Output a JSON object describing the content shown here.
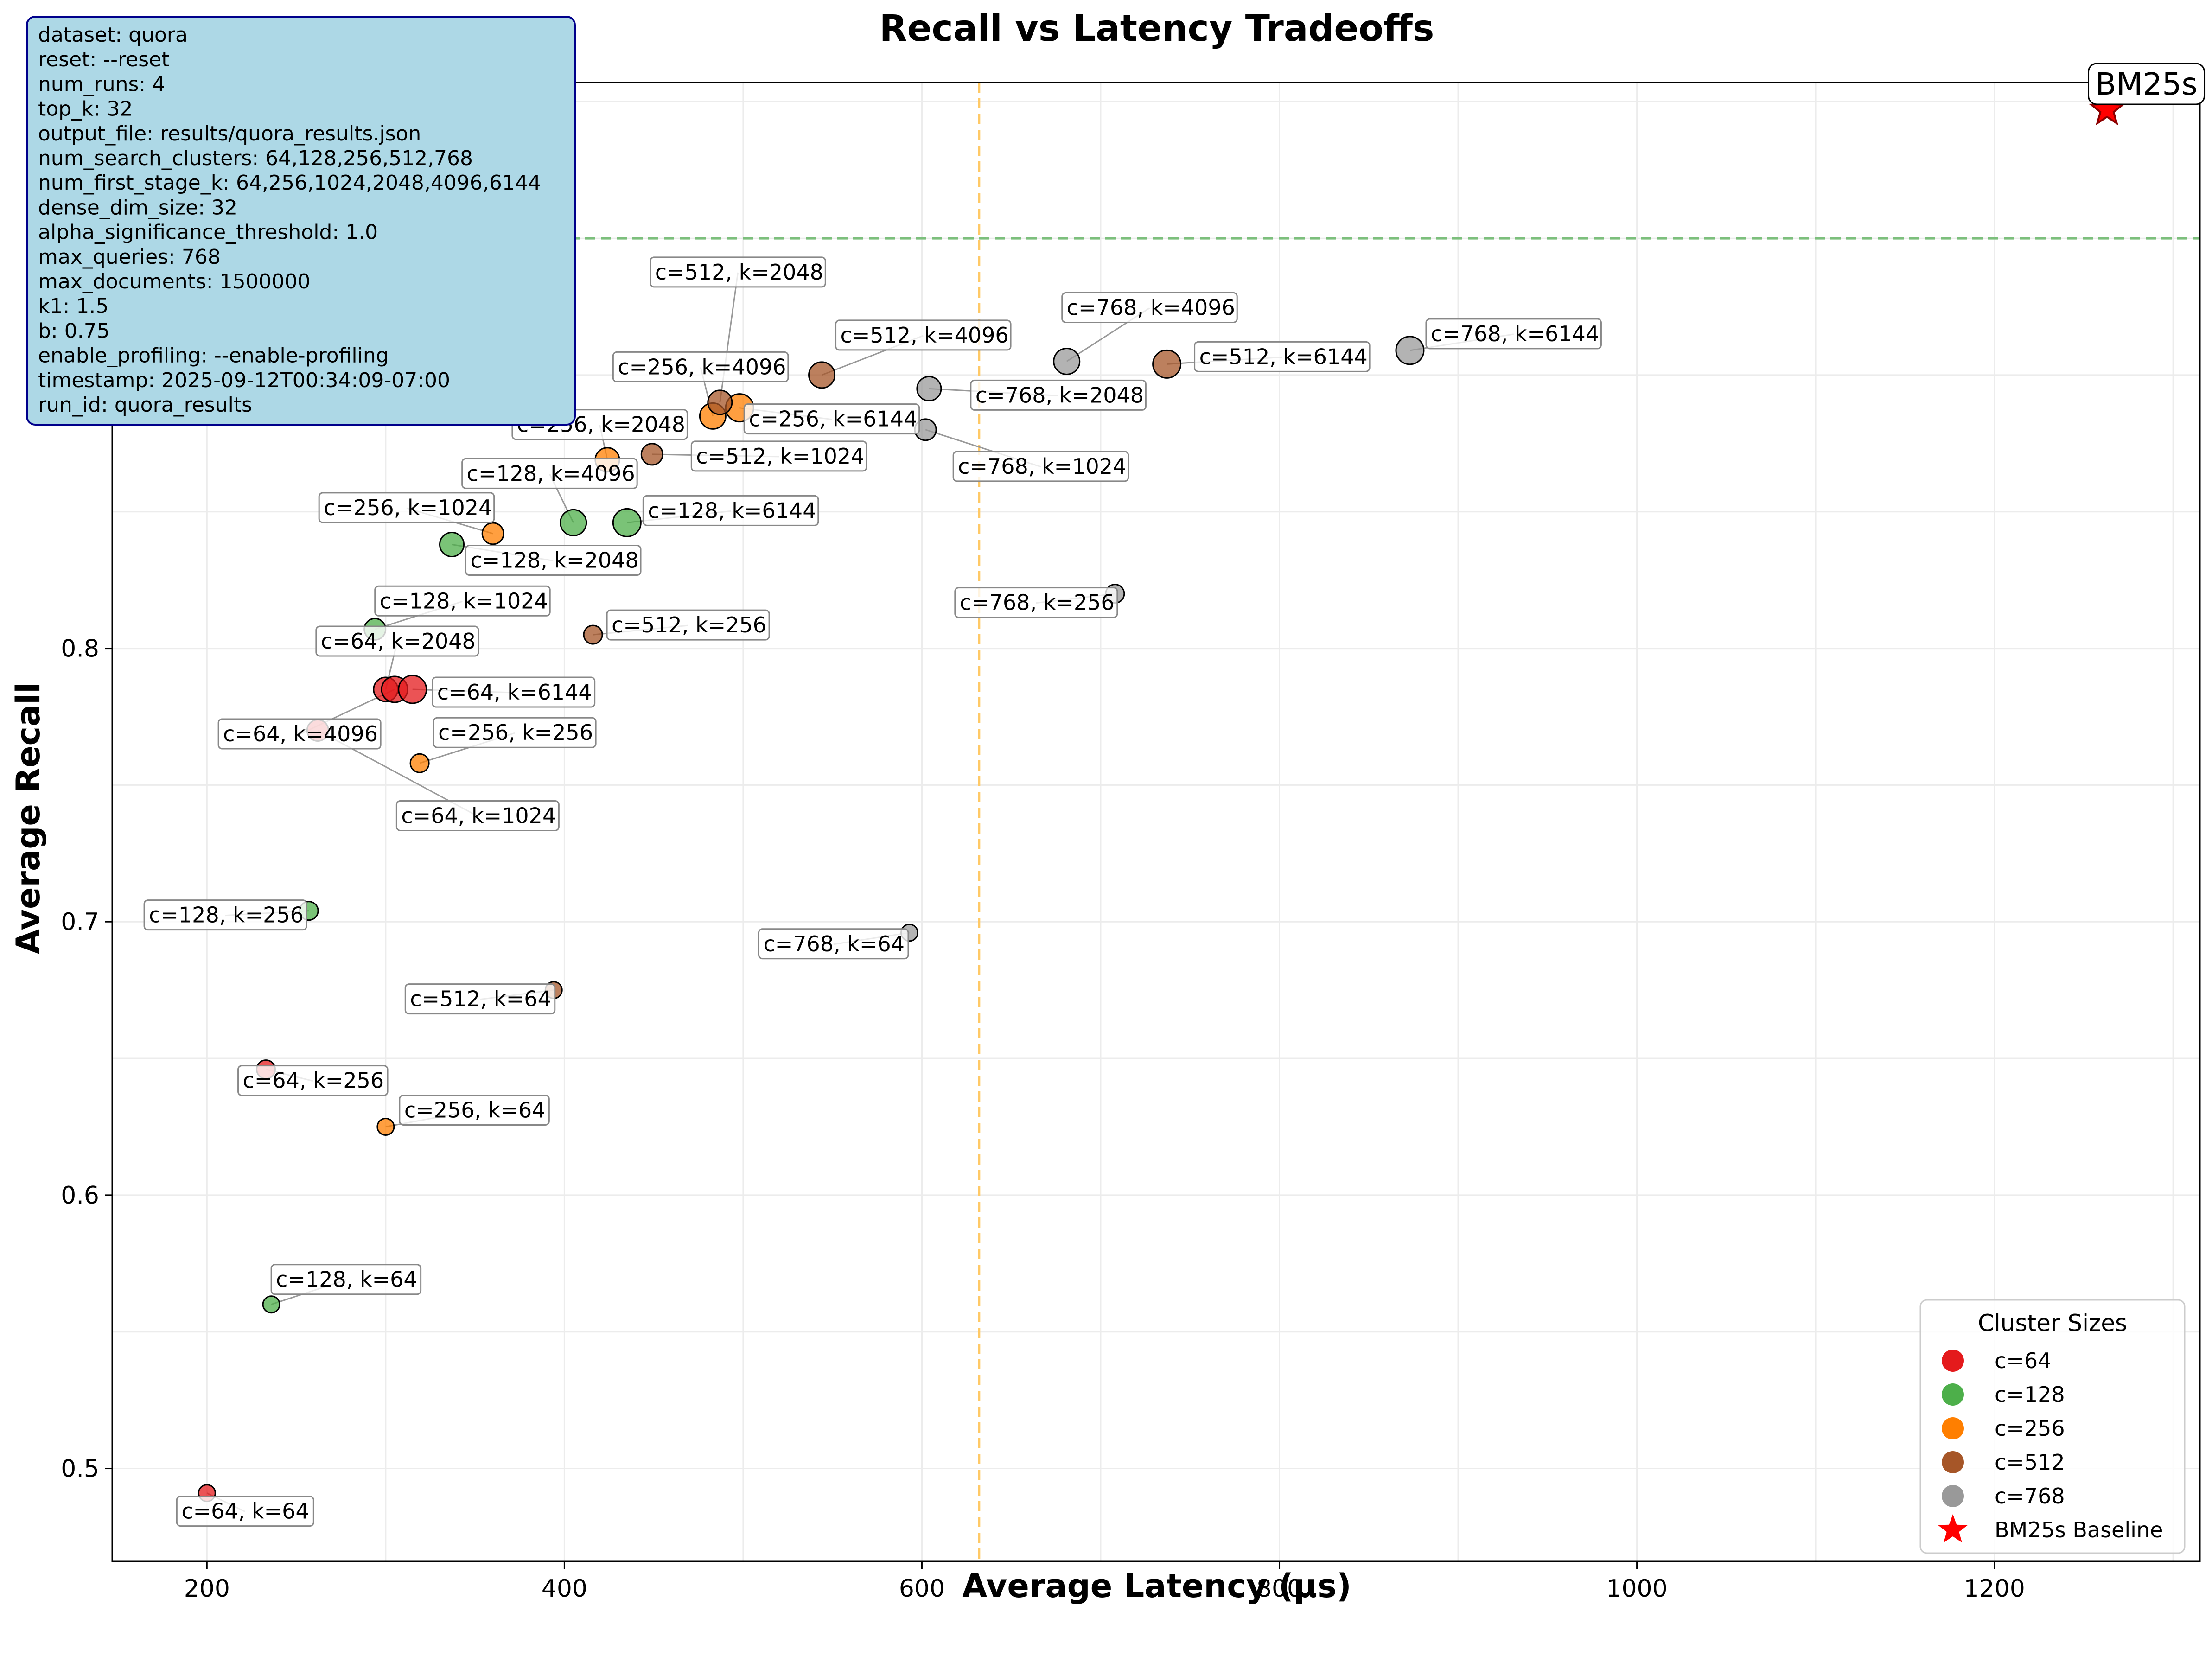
{
  "chart_data": {
    "type": "scatter",
    "title": "Recall vs Latency Tradeoffs",
    "xlabel": "Average Latency (μs)",
    "ylabel": "Average Recall",
    "xlim": [
      147,
      1315
    ],
    "ylim": [
      0.466,
      1.007
    ],
    "x_ticks": [
      200,
      400,
      600,
      800,
      1000,
      1200
    ],
    "y_ticks": [
      0.5,
      0.6,
      0.7,
      0.8
    ],
    "grid": true,
    "reference_lines": [
      {
        "orientation": "vertical",
        "x": 632,
        "color": "#ffc966",
        "style": "dashed"
      },
      {
        "orientation": "horizontal",
        "y": 0.95,
        "color": "#7cbf7c",
        "style": "dashed"
      }
    ],
    "info_box": {
      "lines": [
        "dataset: quora",
        "reset: --reset",
        "num_runs: 4",
        "top_k: 32",
        "output_file: results/quora_results.json",
        "num_search_clusters: 64,128,256,512,768",
        "num_first_stage_k: 64,256,1024,2048,4096,6144",
        "dense_dim_size: 32",
        "alpha_significance_threshold: 1.0",
        "max_queries: 768",
        "max_documents: 1500000",
        "k1: 1.5",
        "b: 0.75",
        "enable_profiling: --enable-profiling",
        "timestamp: 2025-09-12T00:34:09-07:00",
        "run_id: quora_results"
      ]
    },
    "legend": {
      "title": "Cluster Sizes",
      "position": "lower-right",
      "items": [
        {
          "label": "c=64",
          "color": "#e41a1c",
          "marker": "circle"
        },
        {
          "label": "c=128",
          "color": "#4daf4a",
          "marker": "circle"
        },
        {
          "label": "c=256",
          "color": "#ff7f00",
          "marker": "circle"
        },
        {
          "label": "c=512",
          "color": "#a65628",
          "marker": "circle"
        },
        {
          "label": "c=768",
          "color": "#999999",
          "marker": "circle"
        },
        {
          "label": "BM25s Baseline",
          "color": "#ff0000",
          "marker": "star"
        }
      ]
    },
    "baseline": {
      "label": "BM25s",
      "x": 1263,
      "y": 0.997,
      "color": "#ff0000"
    },
    "series": [
      {
        "name": "c=64",
        "color": "#e41a1c",
        "points": [
          {
            "label": "c=64, k=64",
            "k": 64,
            "x": 200,
            "y": 0.491
          },
          {
            "label": "c=64, k=256",
            "k": 256,
            "x": 233,
            "y": 0.646
          },
          {
            "label": "c=64, k=1024",
            "k": 1024,
            "x": 262,
            "y": 0.77
          },
          {
            "label": "c=64, k=2048",
            "k": 2048,
            "x": 300,
            "y": 0.785
          },
          {
            "label": "c=64, k=4096",
            "k": 4096,
            "x": 305,
            "y": 0.785
          },
          {
            "label": "c=64, k=6144",
            "k": 6144,
            "x": 315,
            "y": 0.785
          }
        ]
      },
      {
        "name": "c=128",
        "color": "#4daf4a",
        "points": [
          {
            "label": "c=128, k=64",
            "k": 64,
            "x": 236,
            "y": 0.56
          },
          {
            "label": "c=128, k=256",
            "k": 256,
            "x": 257,
            "y": 0.704
          },
          {
            "label": "c=128, k=1024",
            "k": 1024,
            "x": 294,
            "y": 0.807
          },
          {
            "label": "c=128, k=2048",
            "k": 2048,
            "x": 337,
            "y": 0.838
          },
          {
            "label": "c=128, k=4096",
            "k": 4096,
            "x": 405,
            "y": 0.846
          },
          {
            "label": "c=128, k=6144",
            "k": 6144,
            "x": 435,
            "y": 0.846
          }
        ]
      },
      {
        "name": "c=256",
        "color": "#ff7f00",
        "points": [
          {
            "label": "c=256, k=64",
            "k": 64,
            "x": 300,
            "y": 0.625
          },
          {
            "label": "c=256, k=256",
            "k": 256,
            "x": 319,
            "y": 0.758
          },
          {
            "label": "c=256, k=1024",
            "k": 1024,
            "x": 360,
            "y": 0.842
          },
          {
            "label": "c=256, k=2048",
            "k": 2048,
            "x": 424,
            "y": 0.869
          },
          {
            "label": "c=256, k=4096",
            "k": 4096,
            "x": 483,
            "y": 0.885
          },
          {
            "label": "c=256, k=6144",
            "k": 6144,
            "x": 498,
            "y": 0.888
          }
        ]
      },
      {
        "name": "c=512",
        "color": "#a65628",
        "points": [
          {
            "label": "c=512, k=64",
            "k": 64,
            "x": 394,
            "y": 0.675
          },
          {
            "label": "c=512, k=256",
            "k": 256,
            "x": 416,
            "y": 0.805
          },
          {
            "label": "c=512, k=1024",
            "k": 1024,
            "x": 449,
            "y": 0.871
          },
          {
            "label": "c=512, k=2048",
            "k": 2048,
            "x": 487,
            "y": 0.89
          },
          {
            "label": "c=512, k=4096",
            "k": 4096,
            "x": 544,
            "y": 0.9
          },
          {
            "label": "c=512, k=6144",
            "k": 6144,
            "x": 737,
            "y": 0.904
          }
        ]
      },
      {
        "name": "c=768",
        "color": "#999999",
        "points": [
          {
            "label": "c=768, k=64",
            "k": 64,
            "x": 593,
            "y": 0.696
          },
          {
            "label": "c=768, k=256",
            "k": 256,
            "x": 708,
            "y": 0.82
          },
          {
            "label": "c=768, k=1024",
            "k": 1024,
            "x": 602,
            "y": 0.88
          },
          {
            "label": "c=768, k=2048",
            "k": 2048,
            "x": 604,
            "y": 0.895
          },
          {
            "label": "c=768, k=4096",
            "k": 4096,
            "x": 681,
            "y": 0.905
          },
          {
            "label": "c=768, k=6144",
            "k": 6144,
            "x": 873,
            "y": 0.909
          }
        ]
      }
    ]
  }
}
